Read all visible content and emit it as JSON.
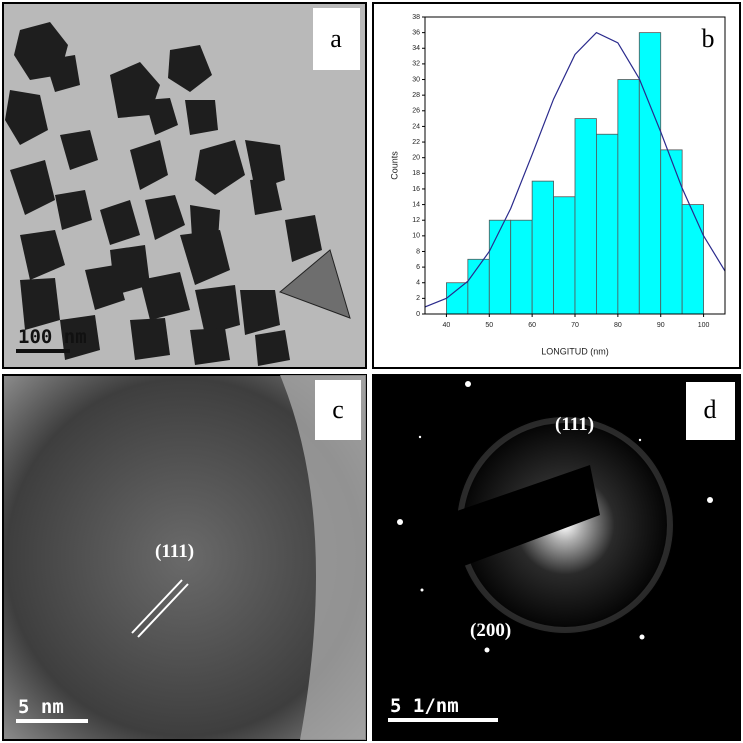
{
  "panels": [
    {
      "label": "a",
      "scale_bar": "100 nm"
    },
    {
      "label": "b"
    },
    {
      "label": "c",
      "annotations": [
        "(111)"
      ],
      "scale_bar": "5 nm"
    },
    {
      "label": "d",
      "annotations": [
        "(111)",
        "(200)"
      ],
      "scale_bar": "5 1/nm"
    }
  ],
  "chart_data": {
    "type": "histogram",
    "x_label": "LONGITUD (nm)",
    "y_label": "Counts",
    "bins": [
      40,
      45,
      50,
      55,
      60,
      65,
      70,
      75,
      80,
      85,
      90,
      95,
      100
    ],
    "counts": [
      4,
      7,
      12,
      12,
      17,
      15,
      25,
      23,
      30,
      36,
      21,
      14
    ],
    "color": "#00ffff",
    "fit": {
      "x": [
        35,
        40,
        45,
        50,
        55,
        60,
        65,
        70,
        75,
        80,
        85,
        90,
        95,
        100,
        105
      ],
      "values": [
        0.9,
        2.0,
        4.2,
        8.0,
        13.5,
        20.4,
        27.5,
        33.2,
        36.0,
        34.7,
        30.1,
        23.3,
        16.1,
        10.0,
        5.5
      ],
      "color": "#2a2a8c"
    },
    "xlim": [
      35,
      105
    ],
    "ylim": [
      0,
      38
    ],
    "xticks": [
      40,
      50,
      60,
      70,
      80,
      90,
      100
    ],
    "yticks": [
      0,
      2,
      4,
      6,
      8,
      10,
      12,
      14,
      16,
      18,
      20,
      22,
      24,
      26,
      28,
      30,
      32,
      34,
      36,
      38
    ]
  }
}
